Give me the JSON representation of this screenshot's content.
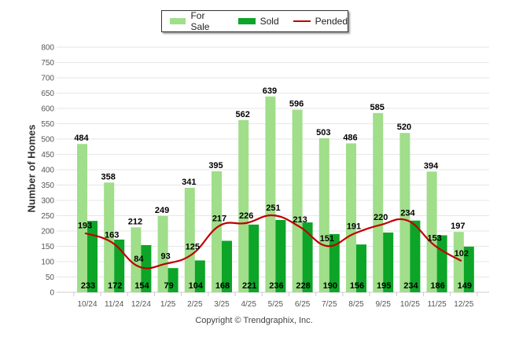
{
  "chart_data": {
    "type": "bar",
    "title": "",
    "xlabel": "",
    "ylabel": "Number of Homes",
    "ylim": [
      0,
      800
    ],
    "yticks": [
      0,
      50,
      100,
      150,
      200,
      250,
      300,
      350,
      400,
      450,
      500,
      550,
      600,
      650,
      700,
      750,
      800
    ],
    "grid": true,
    "legend_position": "top-center",
    "categories": [
      "10/24",
      "11/24",
      "12/24",
      "1/25",
      "2/25",
      "3/25",
      "4/25",
      "5/25",
      "6/25",
      "7/25",
      "8/25",
      "9/25",
      "10/25",
      "11/25",
      "12/25"
    ],
    "series": [
      {
        "name": "For Sale",
        "type": "bar",
        "color": "#a0de8a",
        "values": [
          484,
          358,
          212,
          249,
          341,
          395,
          562,
          639,
          596,
          503,
          486,
          585,
          520,
          394,
          197
        ]
      },
      {
        "name": "Sold",
        "type": "bar",
        "color": "#0ca527",
        "values": [
          233,
          172,
          154,
          79,
          104,
          168,
          221,
          236,
          228,
          190,
          156,
          195,
          234,
          186,
          149
        ]
      },
      {
        "name": "Pended",
        "type": "line",
        "color": "#c00000",
        "values": [
          193,
          163,
          84,
          93,
          125,
          217,
          226,
          251,
          213,
          151,
          191,
          220,
          234,
          153,
          102
        ]
      }
    ]
  },
  "legend": {
    "for_sale": "For Sale",
    "sold": "Sold",
    "pended": "Pended"
  },
  "copyright": "Copyright © Trendgraphix, Inc."
}
